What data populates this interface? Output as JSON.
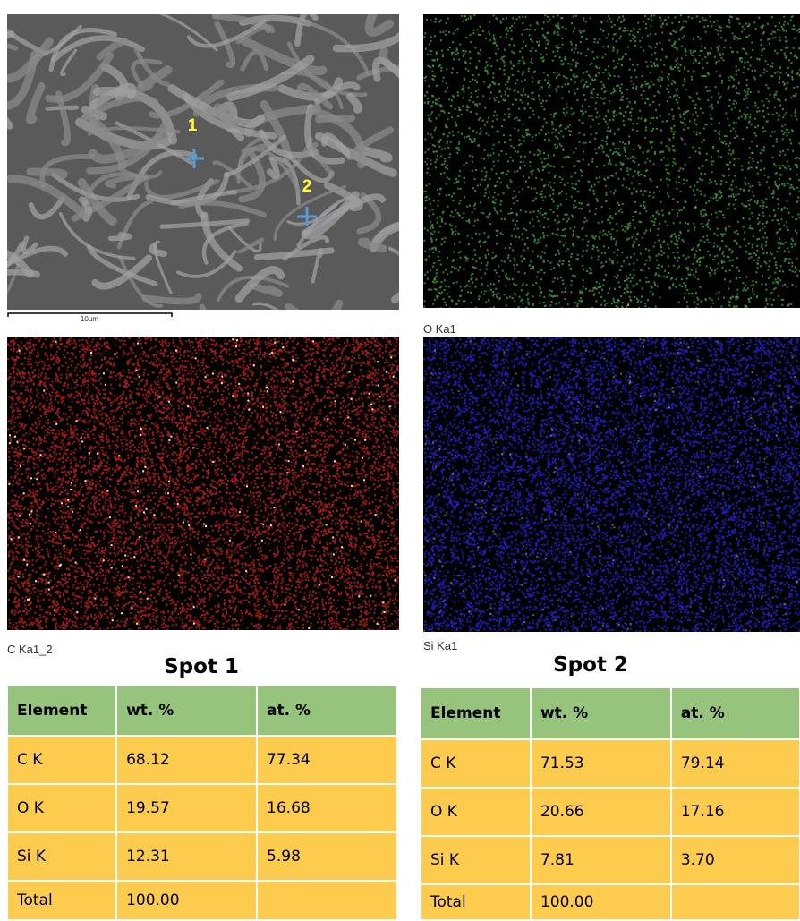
{
  "panels": {
    "sem": {
      "markers": [
        "1",
        "2"
      ],
      "scale_bar": "10µm"
    },
    "o_map": {
      "label": "O Ka1"
    },
    "c_map": {
      "label": "C Ka1_2"
    },
    "si_map": {
      "label": "Si Ka1"
    }
  },
  "tables": [
    {
      "title": "Spot 1",
      "header": [
        "Element",
        "wt. %",
        "at. %"
      ],
      "rows": [
        [
          "C K",
          "68.12",
          "77.34"
        ],
        [
          "O K",
          "19.57",
          "16.68"
        ],
        [
          "Si K",
          "12.31",
          "5.98"
        ],
        [
          "Total",
          "100.00"
        ]
      ]
    },
    {
      "title": "Spot 2",
      "header": [
        "Element",
        "wt. %",
        "at. %"
      ],
      "rows": [
        [
          "C K",
          "71.53",
          "79.14"
        ],
        [
          "O K",
          "20.66",
          "17.16"
        ],
        [
          "Si K",
          "7.81",
          "3.70"
        ],
        [
          "Total",
          "100.00"
        ]
      ]
    }
  ]
}
